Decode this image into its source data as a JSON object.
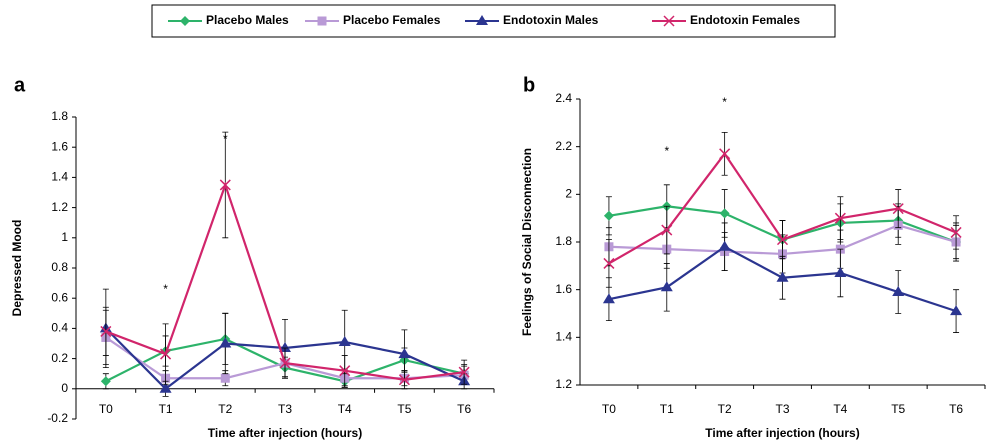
{
  "chart_data": [
    {
      "type": "line",
      "panel_label": "a",
      "y_label": "Depressed Mood",
      "x_label": "Time after injection (hours)",
      "categories": [
        "T0",
        "T1",
        "T2",
        "T3",
        "T4",
        "T5",
        "T6"
      ],
      "ylim": [
        -0.2,
        1.8
      ],
      "yticks": [
        -0.2,
        0,
        0.2,
        0.4,
        0.6,
        0.8,
        1,
        1.2,
        1.4,
        1.6,
        1.8
      ],
      "annotations": [
        "*",
        "*"
      ],
      "series": [
        {
          "name": "Placebo Males",
          "color": "#2db36a",
          "marker": "diamond",
          "values": [
            0.05,
            0.25,
            0.33,
            0.14,
            0.05,
            0.19,
            0.1
          ],
          "errors": [
            0.05,
            0.1,
            0.17,
            0.07,
            0.04,
            0.08,
            0.06
          ]
        },
        {
          "name": "Placebo Females",
          "color": "#b99ad6",
          "marker": "square",
          "values": [
            0.34,
            0.07,
            0.07,
            0.17,
            0.07,
            0.07,
            0.09
          ],
          "errors": [
            0.18,
            0.05,
            0.05,
            0.09,
            0.06,
            0.05,
            0.06
          ]
        },
        {
          "name": "Endotoxin Males",
          "color": "#2b3590",
          "marker": "triangle",
          "values": [
            0.4,
            0.0,
            0.3,
            0.27,
            0.31,
            0.23,
            0.05
          ],
          "errors": [
            0.26,
            0.05,
            0.2,
            0.19,
            0.21,
            0.16,
            0.05
          ]
        },
        {
          "name": "Endotoxin Females",
          "color": "#d1256b",
          "marker": "x",
          "values": [
            0.38,
            0.23,
            1.35,
            0.17,
            0.12,
            0.06,
            0.11
          ],
          "errors": [
            0.16,
            0.2,
            0.35,
            0.1,
            0.1,
            0.06,
            0.08
          ]
        }
      ]
    },
    {
      "type": "line",
      "panel_label": "b",
      "y_label": "Feelings of Social Disconnection",
      "x_label": "Time after injection (hours)",
      "categories": [
        "T0",
        "T1",
        "T2",
        "T3",
        "T4",
        "T5",
        "T6"
      ],
      "ylim": [
        1.2,
        2.4
      ],
      "yticks": [
        1.2,
        1.4,
        1.6,
        1.8,
        2,
        2.2,
        2.4
      ],
      "annotations": [
        "*",
        "*"
      ],
      "series": [
        {
          "color": "#2db36a",
          "marker": "diamond",
          "values": [
            1.91,
            1.95,
            1.92,
            1.81,
            1.88,
            1.89,
            1.8
          ],
          "errors": [
            0.08,
            0.09,
            0.1,
            0.08,
            0.08,
            0.07,
            0.07
          ]
        },
        {
          "color": "#b99ad6",
          "marker": "square",
          "values": [
            1.78,
            1.77,
            1.76,
            1.75,
            1.77,
            1.87,
            1.8
          ],
          "errors": [
            0.08,
            0.08,
            0.08,
            0.08,
            0.08,
            0.08,
            0.08
          ]
        },
        {
          "color": "#2b3590",
          "marker": "triangle",
          "values": [
            1.56,
            1.61,
            1.78,
            1.65,
            1.67,
            1.59,
            1.51
          ],
          "errors": [
            0.09,
            0.1,
            0.1,
            0.09,
            0.1,
            0.09,
            0.09
          ]
        },
        {
          "color": "#d1256b",
          "marker": "x",
          "values": [
            1.71,
            1.85,
            2.17,
            1.81,
            1.9,
            1.94,
            1.84
          ],
          "errors": [
            0.1,
            0.1,
            0.09,
            0.08,
            0.09,
            0.08,
            0.07
          ]
        }
      ]
    }
  ]
}
